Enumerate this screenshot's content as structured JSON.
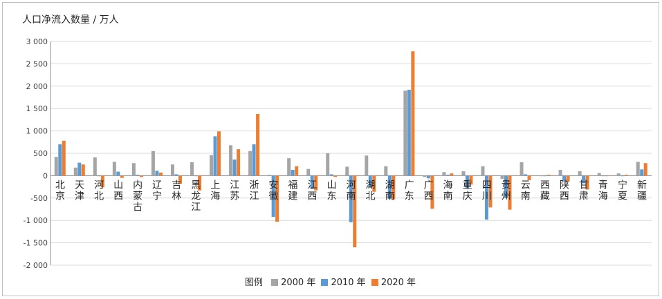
{
  "chart_data": {
    "type": "bar",
    "title": "人口净流入数量 / 万人",
    "ylim": [
      -2000,
      3000
    ],
    "yticks": [
      3000,
      2500,
      2000,
      1500,
      1000,
      500,
      0,
      -500,
      -1000,
      -1500,
      -2000
    ],
    "ytick_labels": [
      "3 000",
      "2 500",
      "2 000",
      "1 500",
      "1 000",
      "500",
      "0",
      "-500",
      "-1 000",
      "-1 500",
      "-2 000"
    ],
    "categories": [
      "北京",
      "天津",
      "河北",
      "山西",
      "内蒙古",
      "辽宁",
      "吉林",
      "黑龙江",
      "上海",
      "江苏",
      "浙江",
      "安徽",
      "福建",
      "江西",
      "山东",
      "河南",
      "湖北",
      "湖南",
      "广东",
      "广西",
      "海南",
      "重庆",
      "四川",
      "贵州",
      "云南",
      "西藏",
      "陕西",
      "甘肃",
      "青海",
      "宁夏",
      "新疆"
    ],
    "legend_title": "图例",
    "legend_position": "bottom",
    "grid": true,
    "series": [
      {
        "name": "2000 年",
        "color": "#a5a5a5",
        "values": [
          420,
          180,
          410,
          310,
          280,
          550,
          250,
          300,
          460,
          680,
          550,
          20,
          390,
          150,
          500,
          200,
          450,
          210,
          1900,
          -30,
          80,
          100,
          210,
          -70,
          300,
          -10,
          130,
          100,
          60,
          50,
          310
        ]
      },
      {
        "name": "2010 年",
        "color": "#5b9bd5",
        "values": [
          700,
          290,
          -10,
          90,
          20,
          110,
          30,
          -10,
          880,
          360,
          700,
          -920,
          130,
          -300,
          30,
          -1040,
          -260,
          -520,
          1920,
          -60,
          20,
          -280,
          -980,
          -500,
          30,
          -10,
          -120,
          -170,
          -10,
          -10,
          140
        ]
      },
      {
        "name": "2020 年",
        "color": "#ed7d31",
        "values": [
          780,
          250,
          -260,
          -50,
          -30,
          70,
          -180,
          -330,
          990,
          590,
          1380,
          -1030,
          210,
          -330,
          -30,
          -1600,
          -360,
          -530,
          2780,
          -740,
          50,
          -200,
          -710,
          -760,
          -100,
          20,
          -130,
          -310,
          -10,
          20,
          280
        ]
      }
    ]
  }
}
